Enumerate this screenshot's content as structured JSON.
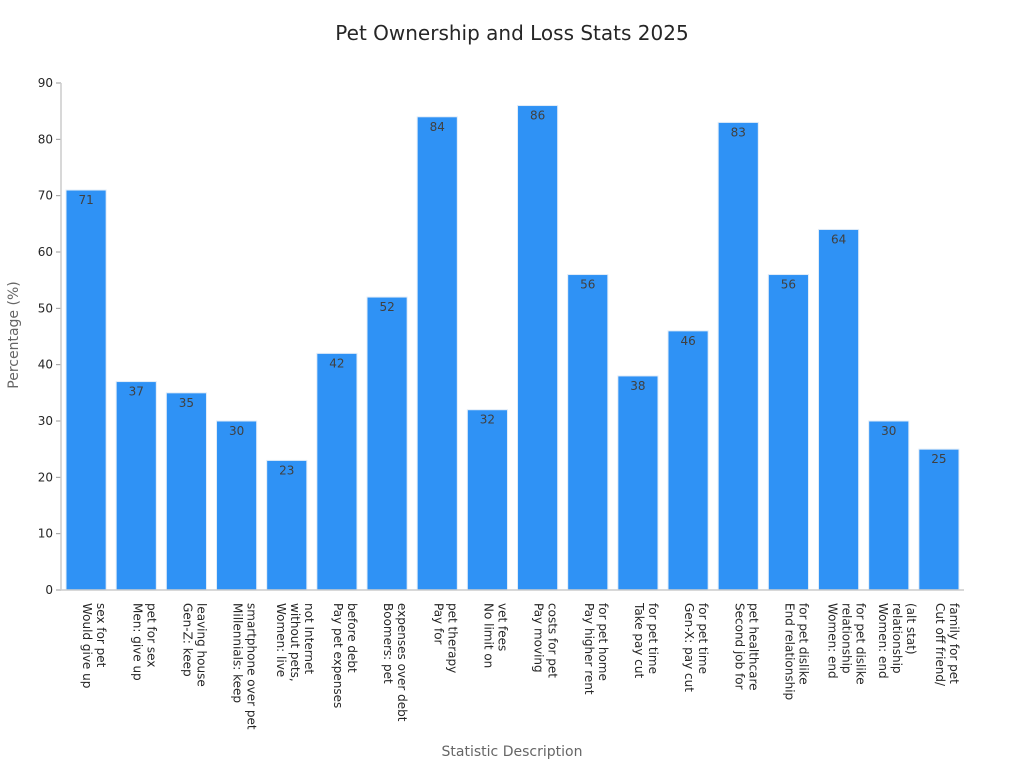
{
  "chart_data": {
    "type": "bar",
    "title": "Pet Ownership and Loss Stats 2025",
    "xlabel": "Statistic Description",
    "ylabel": "Percentage (%)",
    "ylim": [
      0,
      90
    ],
    "yticks": [
      0,
      10,
      20,
      30,
      40,
      50,
      60,
      70,
      80,
      90
    ],
    "grid": false,
    "bar_color": "#2f92f5",
    "bar_edge_color": "#e0ecf8",
    "categories": [
      [
        "Would give up",
        "sex for pet"
      ],
      [
        "Men: give up",
        "pet for sex"
      ],
      [
        "Gen-Z: keep",
        "leaving house"
      ],
      [
        "Millennials: keep",
        "smartphone over pet"
      ],
      [
        "Women: live",
        "without pets,",
        "not Internet"
      ],
      [
        "Pay pet expenses",
        "before debt"
      ],
      [
        "Boomers: pet",
        "expenses over debt"
      ],
      [
        "Pay for",
        "pet therapy"
      ],
      [
        "No limit on",
        "vet fees"
      ],
      [
        "Pay moving",
        "costs for pet"
      ],
      [
        "Pay higher rent",
        "for pet home"
      ],
      [
        "Take pay cut",
        "for pet time"
      ],
      [
        "Gen-X: pay cut",
        "for pet time"
      ],
      [
        "Second job for",
        "pet healthcare"
      ],
      [
        "End relationship",
        "for pet dislike"
      ],
      [
        "Women: end",
        "relationship",
        "for pet dislike"
      ],
      [
        "Women: end",
        "relationship",
        "(alt stat)"
      ],
      [
        "Cut off friend/",
        "family for pet"
      ]
    ],
    "values": [
      71,
      37,
      35,
      30,
      23,
      42,
      52,
      84,
      32,
      86,
      56,
      38,
      46,
      83,
      56,
      64,
      30,
      25
    ]
  }
}
